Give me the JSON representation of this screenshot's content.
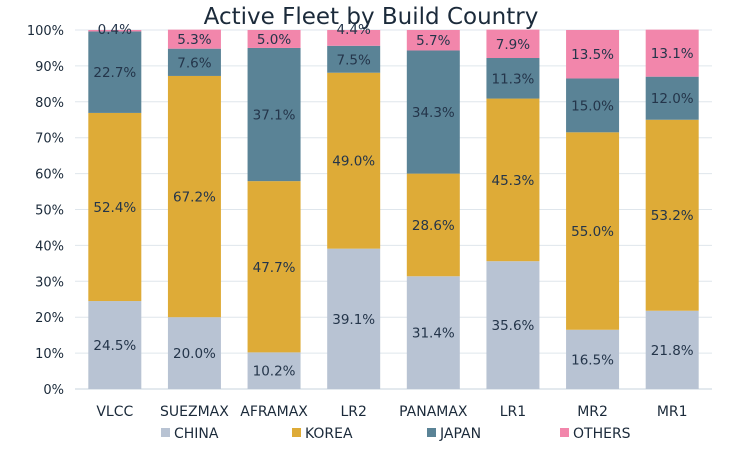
{
  "chart_data": {
    "type": "bar",
    "stacked": true,
    "title": "Active Fleet by Build Country",
    "xlabel": "",
    "ylabel": "",
    "ylim": [
      0,
      100
    ],
    "y_ticks": [
      "0%",
      "10%",
      "20%",
      "30%",
      "40%",
      "50%",
      "60%",
      "70%",
      "80%",
      "90%",
      "100%"
    ],
    "categories": [
      "VLCC",
      "SUEZMAX",
      "AFRAMAX",
      "LR2",
      "PANAMAX",
      "LR1",
      "MR2",
      "MR1"
    ],
    "series": [
      {
        "name": "CHINA",
        "color": "#b8c3d3",
        "values": [
          24.5,
          20.0,
          10.2,
          39.1,
          31.4,
          35.6,
          16.5,
          21.8
        ],
        "labels": [
          "24.5%",
          "20.0%",
          "10.2%",
          "39.1%",
          "31.4%",
          "35.6%",
          "16.5%",
          "21.8%"
        ]
      },
      {
        "name": "KOREA",
        "color": "#deab37",
        "values": [
          52.4,
          67.2,
          47.7,
          49.0,
          28.6,
          45.3,
          55.0,
          53.2
        ],
        "labels": [
          "52.4%",
          "67.2%",
          "47.7%",
          "49.0%",
          "28.6%",
          "45.3%",
          "55.0%",
          "53.2%"
        ]
      },
      {
        "name": "JAPAN",
        "color": "#5a8396",
        "values": [
          22.7,
          7.6,
          37.1,
          7.5,
          34.3,
          11.3,
          15.0,
          12.0
        ],
        "labels": [
          "22.7%",
          "7.6%",
          "37.1%",
          "7.5%",
          "34.3%",
          "11.3%",
          "15.0%",
          "12.0%"
        ]
      },
      {
        "name": "OTHERS",
        "color": "#f286ab",
        "values": [
          0.4,
          5.3,
          5.0,
          4.4,
          5.7,
          7.9,
          13.5,
          13.1
        ],
        "labels": [
          "0.4%",
          "5.3%",
          "5.0%",
          "4.4%",
          "5.7%",
          "7.9%",
          "13.5%",
          "13.1%"
        ]
      }
    ],
    "grid": true,
    "legend_position": "bottom"
  }
}
